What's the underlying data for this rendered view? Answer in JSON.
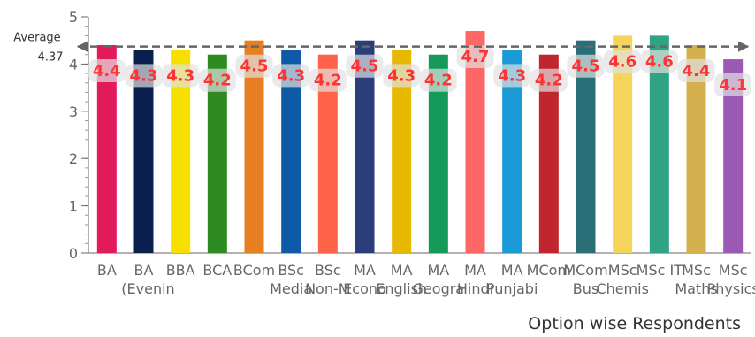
{
  "chart_data": {
    "type": "bar",
    "xlabel": "Option wise Respondents",
    "ylabel": "",
    "ylim": [
      0,
      5
    ],
    "yticks": [
      "0",
      "1",
      "2",
      "3",
      "4",
      "5"
    ],
    "categories": [
      [
        "BA"
      ],
      [
        "BA",
        "(Evenin"
      ],
      [
        "BBA"
      ],
      [
        "BCA"
      ],
      [
        "BCom"
      ],
      [
        "BSc",
        "Media"
      ],
      [
        "BSc",
        "Non-M"
      ],
      [
        "MA",
        "Econo"
      ],
      [
        "MA",
        "English"
      ],
      [
        "MA",
        "Geogra"
      ],
      [
        "MA",
        "Hindi"
      ],
      [
        "MA",
        "Punjabi"
      ],
      [
        "MCom"
      ],
      [
        "MCom",
        "Bus"
      ],
      [
        "MSc",
        "Chemis"
      ],
      [
        "MSc IT"
      ],
      [
        "MSc",
        "Maths"
      ],
      [
        "MSc",
        "Physics"
      ]
    ],
    "values": [
      4.4,
      4.3,
      4.3,
      4.2,
      4.5,
      4.3,
      4.2,
      4.5,
      4.3,
      4.2,
      4.7,
      4.3,
      4.2,
      4.5,
      4.6,
      4.6,
      4.4,
      4.1
    ],
    "data_labels": [
      "4.4",
      "4.3",
      "4.3",
      "4.2",
      "4.5",
      "4.3",
      "4.2",
      "4.5",
      "4.3",
      "4.2",
      "4.7",
      "4.3",
      "4.2",
      "4.5",
      "4.6",
      "4.6",
      "4.4",
      "4.1"
    ],
    "colors": [
      "#e31a5a",
      "#0b1f4f",
      "#f7e000",
      "#2e8b22",
      "#e67e22",
      "#0e5aa7",
      "#ff6347",
      "#2c3e7a",
      "#e6b800",
      "#159a5a",
      "#ff6666",
      "#1a9ad6",
      "#c0262d",
      "#2a6f77",
      "#f5d45c",
      "#2fa383",
      "#d4b04e",
      "#9b59b6"
    ],
    "average": {
      "label": "Average",
      "value": 4.37,
      "value_label": "4.37",
      "color": "#666666"
    },
    "grid": false,
    "legend": "none"
  }
}
